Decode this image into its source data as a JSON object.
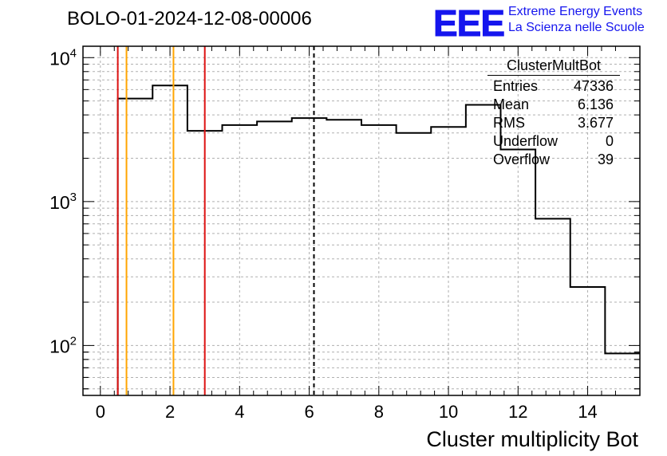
{
  "header": {
    "run_title": "BOLO-01-2024-12-08-00006",
    "logo_text": "EEE",
    "logo_line1": "Extreme Energy Events",
    "logo_line2": "La Scienza nelle Scuole"
  },
  "stats_box": {
    "title": "ClusterMultBot",
    "rows": [
      {
        "label": "Entries",
        "value": "47336"
      },
      {
        "label": "Mean",
        "value": "6.136"
      },
      {
        "label": "RMS",
        "value": "3.677"
      },
      {
        "label": "Underflow",
        "value": "0"
      },
      {
        "label": "Overflow",
        "value": "39"
      }
    ]
  },
  "colors": {
    "histogram": "#000000",
    "red_line": "#dd1111",
    "orange_line": "#ffa500",
    "mean_line": "#000000",
    "logo_blue": "#1515ee",
    "grid": "#b0b0b0"
  },
  "chart_data": {
    "type": "histogram",
    "title": "BOLO-01-2024-12-08-00006",
    "xlabel": "Cluster multiplicity Bot",
    "ylabel": "",
    "xlim": [
      -0.5,
      15.5
    ],
    "ylim": [
      45,
      12000
    ],
    "yscale": "log",
    "grid": true,
    "x_ticks": [
      0,
      2,
      4,
      6,
      8,
      10,
      12,
      14
    ],
    "x_tick_labels": [
      "0",
      "2",
      "4",
      "6",
      "8",
      "10",
      "12",
      "14"
    ],
    "y_ticks": [
      100,
      1000,
      10000
    ],
    "y_tick_labels": [
      {
        "base": "10",
        "exp": "2"
      },
      {
        "base": "10",
        "exp": "3"
      },
      {
        "base": "10",
        "exp": "4"
      }
    ],
    "bin_edges": [
      0.5,
      1.5,
      2.5,
      3.5,
      4.5,
      5.5,
      6.5,
      7.5,
      8.5,
      9.5,
      10.5,
      11.5,
      12.5,
      13.5,
      14.5,
      15.5
    ],
    "counts": [
      5200,
      6400,
      3100,
      3400,
      3600,
      3800,
      3700,
      3400,
      3000,
      3300,
      4700,
      2300,
      760,
      255,
      88
    ],
    "vertical_lines": [
      {
        "x": 0.5,
        "color": "red"
      },
      {
        "x": 0.75,
        "color": "orange"
      },
      {
        "x": 2.1,
        "color": "orange"
      },
      {
        "x": 3.0,
        "color": "red"
      },
      {
        "x": 6.136,
        "color": "mean",
        "dashed": true
      }
    ]
  }
}
